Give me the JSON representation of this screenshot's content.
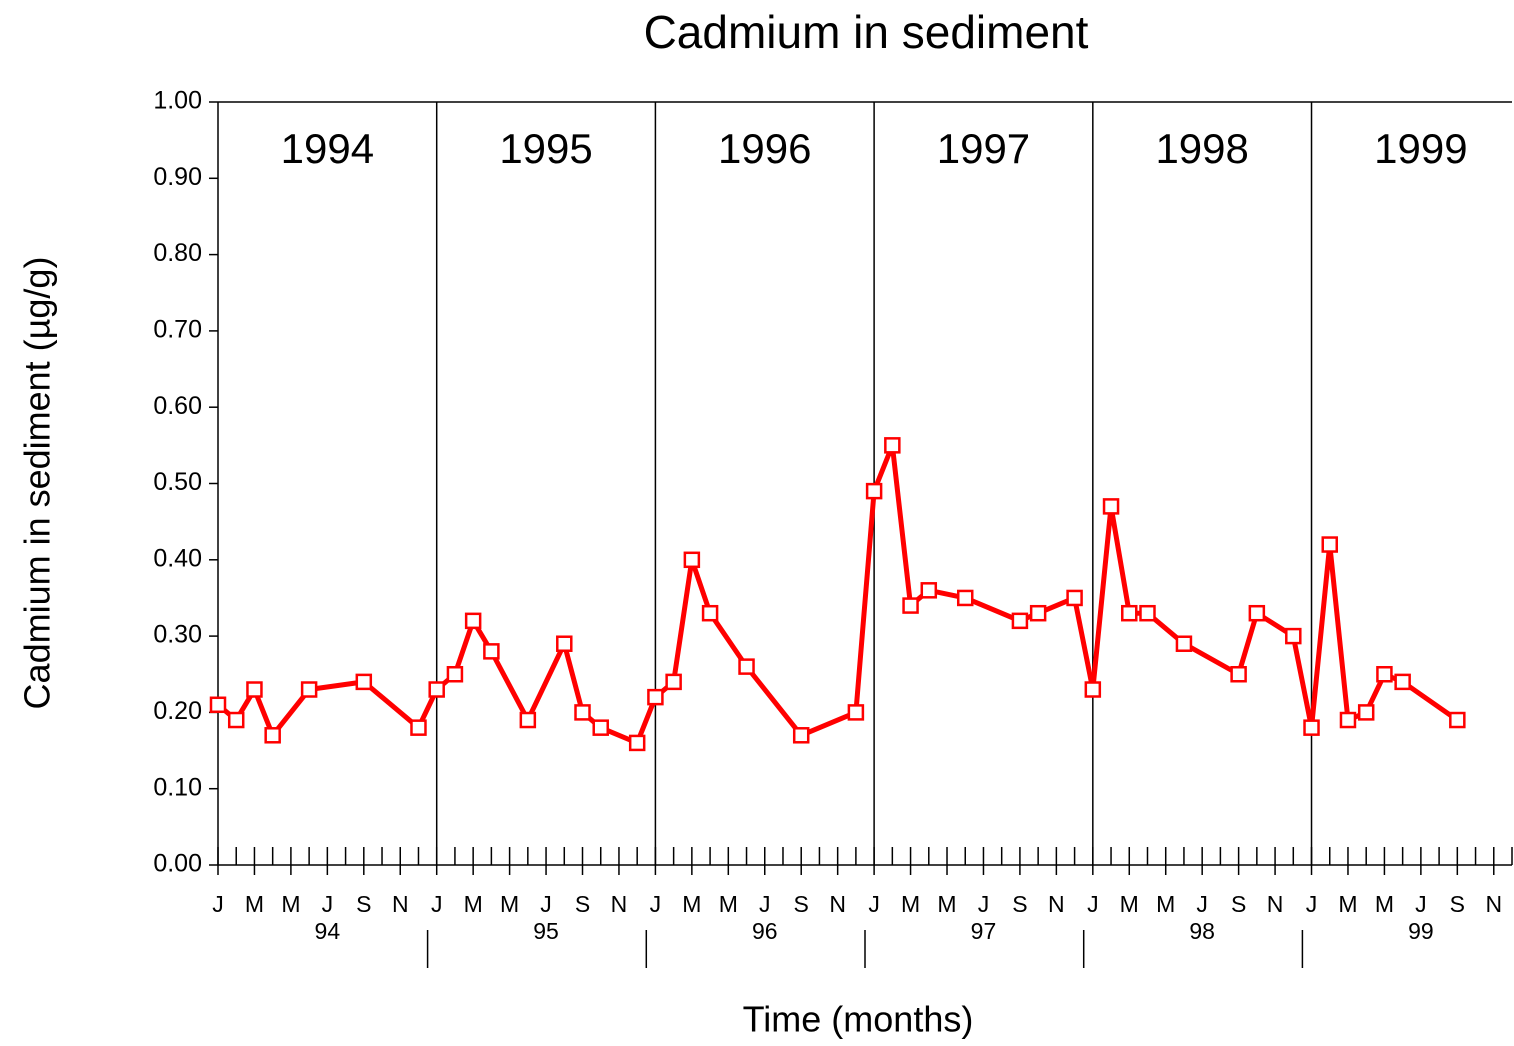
{
  "chart_data": {
    "type": "line",
    "title": "Cadmium in sediment",
    "y_label": "Cadmium in sediment (µg/g)",
    "x_label": "Time (months)",
    "color": "#ff0000",
    "marker": "square",
    "x": [
      "1994-01",
      "1994-02",
      "1994-03",
      "1994-04",
      "1994-06",
      "1994-09",
      "1994-12",
      "1995-01",
      "1995-02",
      "1995-03",
      "1995-04",
      "1995-06",
      "1995-08",
      "1995-09",
      "1995-10",
      "1995-12",
      "1996-01",
      "1996-02",
      "1996-03",
      "1996-04",
      "1996-06",
      "1996-09",
      "1996-12",
      "1997-01",
      "1997-02",
      "1997-03",
      "1997-04",
      "1997-06",
      "1997-09",
      "1997-10",
      "1997-12",
      "1998-01",
      "1998-02",
      "1998-03",
      "1998-04",
      "1998-06",
      "1998-09",
      "1998-10",
      "1998-12",
      "1999-01",
      "1999-02",
      "1999-03",
      "1999-04",
      "1999-05",
      "1999-06",
      "1999-09"
    ],
    "values": [
      0.21,
      0.19,
      0.23,
      0.17,
      0.23,
      0.24,
      0.18,
      0.23,
      0.25,
      0.32,
      0.28,
      0.19,
      0.29,
      0.2,
      0.18,
      0.16,
      0.22,
      0.24,
      0.4,
      0.33,
      0.26,
      0.17,
      0.2,
      0.49,
      0.55,
      0.34,
      0.36,
      0.35,
      0.32,
      0.33,
      0.35,
      0.23,
      0.47,
      0.33,
      0.33,
      0.29,
      0.25,
      0.33,
      0.3,
      0.18,
      0.42,
      0.19,
      0.2,
      0.25,
      0.24,
      0.19
    ],
    "xlim": [
      "1994-01",
      "1999-12"
    ],
    "ylim": [
      0,
      1
    ],
    "yticks": [
      {
        "value": 0,
        "label": "0.00"
      },
      {
        "value": 0.1,
        "label": "0.10"
      },
      {
        "value": 0.2,
        "label": "0.20"
      },
      {
        "value": 0.3,
        "label": "0.30"
      },
      {
        "value": 0.4,
        "label": "0.40"
      },
      {
        "value": 0.5,
        "label": "0.50"
      },
      {
        "value": 0.6,
        "label": "0.60"
      },
      {
        "value": 0.7,
        "label": "0.70"
      },
      {
        "value": 0.8,
        "label": "0.80"
      },
      {
        "value": 0.9,
        "label": "0.90"
      },
      {
        "value": 1,
        "label": "1.00"
      }
    ],
    "xticks": [
      {
        "value": "1994-01",
        "label": "J"
      },
      {
        "value": "1994-03",
        "label": "M"
      },
      {
        "value": "1994-05",
        "label": "M"
      },
      {
        "value": "1994-07",
        "label": "J"
      },
      {
        "value": "1994-09",
        "label": "S"
      },
      {
        "value": "1994-11",
        "label": "N"
      },
      {
        "value": "1995-01",
        "label": "J"
      },
      {
        "value": "1995-03",
        "label": "M"
      },
      {
        "value": "1995-05",
        "label": "M"
      },
      {
        "value": "1995-07",
        "label": "J"
      },
      {
        "value": "1995-09",
        "label": "S"
      },
      {
        "value": "1995-11",
        "label": "N"
      },
      {
        "value": "1996-01",
        "label": "J"
      },
      {
        "value": "1996-03",
        "label": "M"
      },
      {
        "value": "1996-05",
        "label": "M"
      },
      {
        "value": "1996-07",
        "label": "J"
      },
      {
        "value": "1996-09",
        "label": "S"
      },
      {
        "value": "1996-11",
        "label": "N"
      },
      {
        "value": "1997-01",
        "label": "J"
      },
      {
        "value": "1997-03",
        "label": "M"
      },
      {
        "value": "1997-05",
        "label": "M"
      },
      {
        "value": "1997-07",
        "label": "J"
      },
      {
        "value": "1997-09",
        "label": "S"
      },
      {
        "value": "1997-11",
        "label": "N"
      },
      {
        "value": "1998-01",
        "label": "J"
      },
      {
        "value": "1998-03",
        "label": "M"
      },
      {
        "value": "1998-05",
        "label": "M"
      },
      {
        "value": "1998-07",
        "label": "J"
      },
      {
        "value": "1998-09",
        "label": "S"
      },
      {
        "value": "1998-11",
        "label": "N"
      },
      {
        "value": "1999-01",
        "label": "J"
      },
      {
        "value": "1999-03",
        "label": "M"
      },
      {
        "value": "1999-05",
        "label": "M"
      },
      {
        "value": "1999-07",
        "label": "J"
      },
      {
        "value": "1999-09",
        "label": "S"
      },
      {
        "value": "1999-11",
        "label": "N"
      }
    ],
    "xminorticks": [
      "1994-02",
      "1994-04",
      "1994-06",
      "1994-08",
      "1994-10",
      "1994-12",
      "1995-02",
      "1995-04",
      "1995-06",
      "1995-08",
      "1995-10",
      "1995-12",
      "1996-02",
      "1996-04",
      "1996-06",
      "1996-08",
      "1996-10",
      "1996-12",
      "1997-02",
      "1997-04",
      "1997-06",
      "1997-08",
      "1997-10",
      "1997-12",
      "1998-02",
      "1998-04",
      "1998-06",
      "1998-08",
      "1998-10",
      "1998-12",
      "1999-02",
      "1999-04",
      "1999-06",
      "1999-08",
      "1999-10",
      "1999-12"
    ],
    "year_axis_labels": [
      "94",
      "95",
      "96",
      "97",
      "98",
      "99"
    ],
    "year_labels": [
      "1994",
      "1995",
      "1996",
      "1997",
      "1998",
      "1999"
    ],
    "year_lines": [
      "1995-01",
      "1996-01",
      "1997-01",
      "1998-01",
      "1999-01"
    ]
  }
}
